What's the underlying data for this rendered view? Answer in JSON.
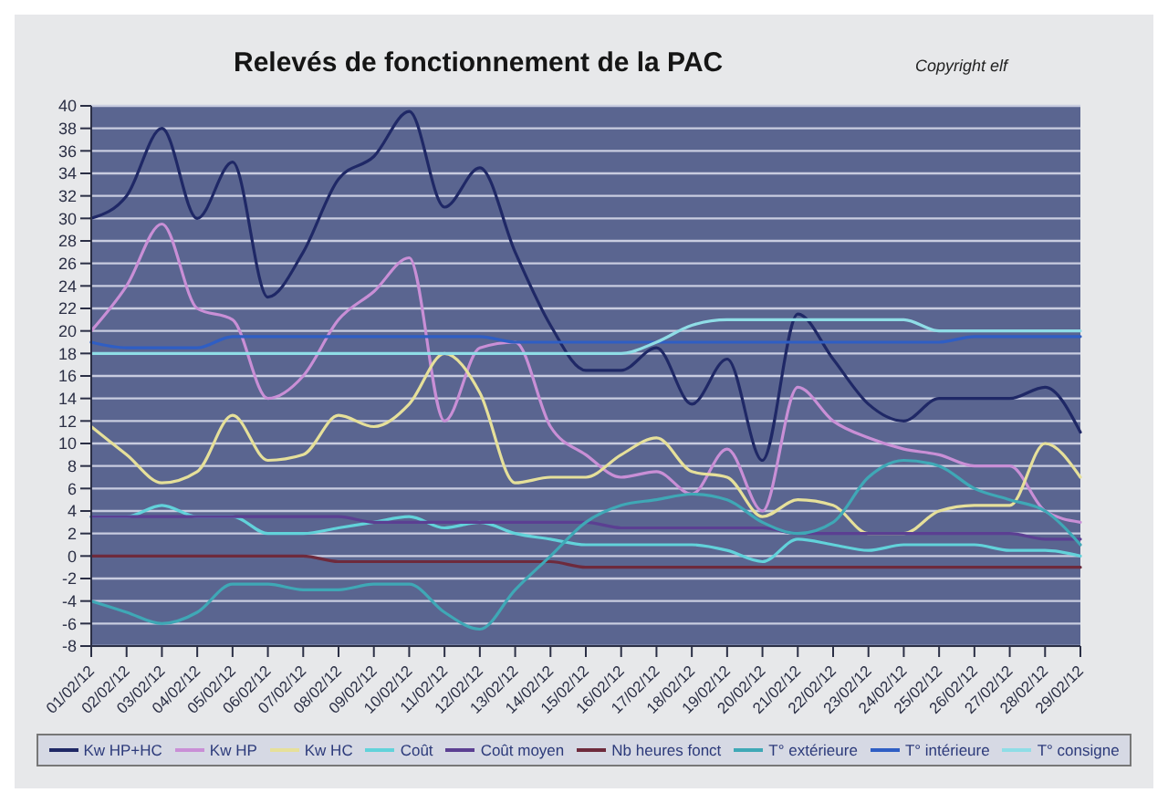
{
  "chart_data": {
    "type": "line",
    "title": "Relevés de fonctionnement de la PAC",
    "annotations": [
      "Copyright elf"
    ],
    "categories": [
      "01/02/12",
      "02/02/12",
      "03/02/12",
      "04/02/12",
      "05/02/12",
      "06/02/12",
      "07/02/12",
      "08/02/12",
      "09/02/12",
      "10/02/12",
      "11/02/12",
      "12/02/12",
      "13/02/12",
      "14/02/12",
      "15/02/12",
      "16/02/12",
      "17/02/12",
      "18/02/12",
      "19/02/12",
      "20/02/12",
      "21/02/12",
      "22/02/12",
      "23/02/12",
      "24/02/12",
      "25/02/12",
      "26/02/12",
      "27/02/12",
      "28/02/12",
      "29/02/12"
    ],
    "series": [
      {
        "name": "Kw HP+HC",
        "color": "#1f2866",
        "values": [
          30,
          32,
          38,
          30,
          35,
          23,
          27,
          33.5,
          35.5,
          39.5,
          31,
          34.5,
          27,
          20.5,
          16.5,
          16.5,
          18.5,
          13.5,
          17.5,
          8.5,
          21.5,
          17.5,
          13.5,
          12,
          14,
          14,
          14,
          15,
          11
        ]
      },
      {
        "name": "Kw HP",
        "color": "#c98fd6",
        "values": [
          20,
          24,
          29.5,
          22,
          21,
          14,
          16,
          21,
          23.5,
          26.5,
          12,
          18.5,
          19,
          11.5,
          9,
          7,
          7.5,
          5.5,
          9.5,
          4,
          15,
          12,
          10.5,
          9.5,
          9,
          8,
          8,
          4,
          3
        ]
      },
      {
        "name": "Kw HC",
        "color": "#e6e09a",
        "values": [
          11.5,
          9,
          6.5,
          7.5,
          12.5,
          8.5,
          9,
          12.5,
          11.5,
          13.5,
          18,
          14.5,
          6.5,
          7,
          7,
          9,
          10.5,
          7.5,
          7,
          3.5,
          5,
          4.5,
          2,
          2,
          4,
          4.5,
          4.5,
          10,
          7
        ]
      },
      {
        "name": "Coût",
        "color": "#62d2da",
        "values": [
          3.5,
          3.5,
          4.5,
          3.5,
          3.5,
          2,
          2,
          2.5,
          3,
          3.5,
          2.5,
          3,
          2,
          1.5,
          1,
          1,
          1,
          1,
          0.5,
          -0.5,
          1.5,
          1,
          0.5,
          1,
          1,
          1,
          0.5,
          0.5,
          0
        ]
      },
      {
        "name": "Coût moyen",
        "color": "#5b3f92",
        "values": [
          3.5,
          3.5,
          3.5,
          3.5,
          3.5,
          3.5,
          3.5,
          3.5,
          3,
          3,
          3,
          3,
          3,
          3,
          3,
          2.5,
          2.5,
          2.5,
          2.5,
          2.5,
          2,
          2,
          2,
          2,
          2,
          2,
          2,
          1.5,
          1.5
        ]
      },
      {
        "name": "Nb heures fonct",
        "color": "#6e2a3c",
        "values": [
          0,
          0,
          0,
          0,
          0,
          0,
          0,
          -0.5,
          -0.5,
          -0.5,
          -0.5,
          -0.5,
          -0.5,
          -0.5,
          -1,
          -1,
          -1,
          -1,
          -1,
          -1,
          -1,
          -1,
          -1,
          -1,
          -1,
          -1,
          -1,
          -1,
          -1
        ]
      },
      {
        "name": "T° extérieure",
        "color": "#3fa8b6",
        "values": [
          -4,
          -5,
          -6,
          -5,
          -2.5,
          -2.5,
          -3,
          -3,
          -2.5,
          -2.5,
          -5,
          -6.5,
          -3,
          0,
          3,
          4.5,
          5,
          5.5,
          5,
          3,
          2,
          3,
          7,
          8.5,
          8,
          6,
          5,
          4,
          1
        ]
      },
      {
        "name": "T° intérieure",
        "color": "#2f5ec4",
        "values": [
          19,
          18.5,
          18.5,
          18.5,
          19.5,
          19.5,
          19.5,
          19.5,
          19.5,
          19.5,
          19.5,
          19.5,
          19,
          19,
          19,
          19,
          19,
          19,
          19,
          19,
          19,
          19,
          19,
          19,
          19,
          19.5,
          19.5,
          19.5,
          19.5
        ]
      },
      {
        "name": "T° consigne",
        "color": "#8fdde6",
        "values": [
          18,
          18,
          18,
          18,
          18,
          18,
          18,
          18,
          18,
          18,
          18,
          18,
          18,
          18,
          18,
          18,
          19,
          20.5,
          21,
          21,
          21,
          21,
          21,
          21,
          20,
          20,
          20,
          20,
          20
        ]
      }
    ],
    "ylim": [
      -8,
      40
    ],
    "yticks": [
      -8,
      -6,
      -4,
      -2,
      0,
      2,
      4,
      6,
      8,
      10,
      12,
      14,
      16,
      18,
      20,
      22,
      24,
      26,
      28,
      30,
      32,
      34,
      36,
      38,
      40
    ],
    "grid": "y",
    "legend": "bottom",
    "marker": "none",
    "line_style": "solid"
  }
}
